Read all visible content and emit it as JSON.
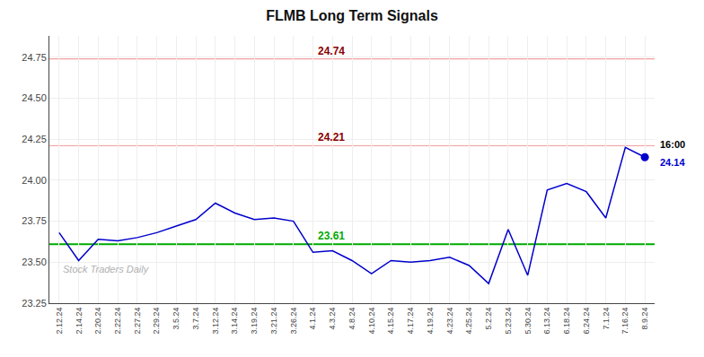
{
  "chart_data": {
    "type": "line",
    "title": "FLMB Long Term Signals",
    "categories": [
      "2.12.24",
      "2.14.24",
      "2.20.24",
      "2.22.24",
      "2.27.24",
      "2.29.24",
      "3.5.24",
      "3.7.24",
      "3.12.24",
      "3.14.24",
      "3.19.24",
      "3.21.24",
      "3.26.24",
      "4.1.24",
      "4.3.24",
      "4.8.24",
      "4.10.24",
      "4.15.24",
      "4.17.24",
      "4.19.24",
      "4.23.24",
      "4.25.24",
      "5.2.24",
      "5.23.24",
      "5.30.24",
      "6.13.24",
      "6.18.24",
      "6.24.24",
      "7.1.24",
      "7.16.24",
      "8.9.24"
    ],
    "values": [
      23.68,
      23.51,
      23.64,
      23.63,
      23.65,
      23.68,
      23.72,
      23.76,
      23.86,
      23.8,
      23.76,
      23.77,
      23.75,
      23.56,
      23.57,
      23.51,
      23.43,
      23.51,
      23.5,
      23.51,
      23.53,
      23.48,
      23.37,
      23.7,
      23.42,
      23.94,
      23.98,
      23.93,
      23.77,
      24.2,
      24.14
    ],
    "color": "#0000cc",
    "last_point_color": "#0000cc",
    "ylim": [
      23.25,
      24.88
    ],
    "yticks": [
      23.25,
      {
        "value": 23.5,
        "label": "23.50"
      },
      23.75,
      {
        "value": 24.0,
        "label": "24.00"
      },
      24.25,
      {
        "value": 24.5,
        "label": "24.50"
      },
      24.75
    ],
    "grid": true,
    "reference_lines": [
      {
        "value": 24.74,
        "label": "24.74",
        "color": "#f4a0a0",
        "text_color": "#8b0000"
      },
      {
        "value": 24.21,
        "label": "24.21",
        "color": "#f4a0a0",
        "text_color": "#8b0000"
      },
      {
        "value": 23.61,
        "label": "23.61",
        "color": "#00aa00",
        "text_color": "#00aa00"
      }
    ],
    "time_label": "16:00",
    "last_value_label": "24.14",
    "watermark": "Stock Traders Daily"
  }
}
